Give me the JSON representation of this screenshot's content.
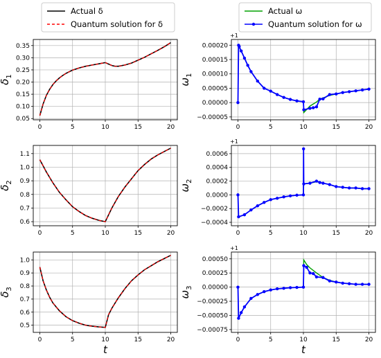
{
  "colors": {
    "actual_delta": "#000000",
    "quantum_delta": "#ff0000",
    "actual_omega": "#00a000",
    "quantum_omega": "#0000ff"
  },
  "legends": {
    "left": {
      "actual": "Actual δ",
      "quantum": "Quantum solution for δ"
    },
    "right": {
      "actual": "Actual ω",
      "quantum": "Quantum solution for ω"
    }
  },
  "chart_data": [
    {
      "type": "line",
      "ylabel": "δ1",
      "xlabel": "",
      "xlim": [
        -1,
        21
      ],
      "ylim": [
        0.045,
        0.375
      ],
      "xticks": [
        0,
        5,
        10,
        15,
        20
      ],
      "yticks": [
        "0.05",
        "0.10",
        "0.15",
        "0.20",
        "0.25",
        "0.30",
        "0.35"
      ],
      "grid": true,
      "series": [
        {
          "name": "Actual δ",
          "x": [
            0,
            0.5,
            1,
            1.5,
            2,
            2.5,
            3,
            3.5,
            4,
            5,
            6,
            7,
            8,
            9,
            10,
            10.5,
            11,
            11.5,
            12,
            13,
            14,
            15,
            16,
            17,
            18,
            19,
            20
          ],
          "y": [
            0.062,
            0.11,
            0.145,
            0.17,
            0.19,
            0.205,
            0.217,
            0.227,
            0.236,
            0.249,
            0.258,
            0.265,
            0.27,
            0.275,
            0.28,
            0.274,
            0.268,
            0.265,
            0.265,
            0.27,
            0.278,
            0.29,
            0.302,
            0.316,
            0.33,
            0.345,
            0.362
          ]
        },
        {
          "name": "Quantum solution for δ",
          "x": [
            0,
            0.5,
            1,
            1.5,
            2,
            2.5,
            3,
            3.5,
            4,
            5,
            6,
            7,
            8,
            9,
            10,
            10.5,
            11,
            11.5,
            12,
            13,
            14,
            15,
            16,
            17,
            18,
            19,
            20
          ],
          "y": [
            0.062,
            0.11,
            0.145,
            0.17,
            0.19,
            0.205,
            0.217,
            0.227,
            0.236,
            0.249,
            0.258,
            0.265,
            0.27,
            0.275,
            0.28,
            0.274,
            0.268,
            0.265,
            0.265,
            0.27,
            0.278,
            0.29,
            0.302,
            0.316,
            0.33,
            0.345,
            0.362
          ]
        }
      ]
    },
    {
      "type": "line",
      "ylabel": "ω1",
      "offset_text": "+1",
      "xlim": [
        -1,
        21
      ],
      "ylim": [
        -6e-05,
        0.00022
      ],
      "xticks": [
        0,
        5,
        10,
        15,
        20
      ],
      "yticks": [
        "−0.00005",
        "0.00000",
        "0.00005",
        "0.00010",
        "0.00015",
        "0.00020"
      ],
      "grid": true,
      "series": [
        {
          "name": "Actual ω",
          "x": [
            0,
            0.2,
            0.5,
            1,
            1.5,
            2,
            3,
            4,
            5,
            6,
            7,
            8,
            9,
            10,
            10.05,
            11,
            12,
            12.5,
            14,
            15,
            16,
            17,
            18,
            19,
            20
          ],
          "y": [
            0.0002,
            0.000195,
            0.00018,
            0.000155,
            0.00013,
            0.000108,
            7.5e-05,
            5e-05,
            4e-05,
            2.8e-05,
            1.8e-05,
            1.1e-05,
            6e-06,
            3e-06,
            -3.5e-05,
            -1.2e-05,
            2e-06,
            1.2e-05,
            2.5e-05,
            3e-05,
            3.5e-05,
            3.8e-05,
            4.1e-05,
            4.4e-05,
            4.7e-05
          ]
        },
        {
          "name": "Quantum solution for ω",
          "x": [
            0,
            0.1,
            0.2,
            0.5,
            1,
            1.5,
            2,
            3,
            4,
            5,
            6,
            7,
            8,
            9,
            10,
            10.05,
            11,
            11.5,
            12,
            12.5,
            13,
            14,
            15,
            16,
            17,
            18,
            19,
            20
          ],
          "y": [
            0,
            0.0002,
            0.000195,
            0.00018,
            0.000155,
            0.00013,
            0.000108,
            7.5e-05,
            5e-05,
            4e-05,
            2.8e-05,
            1.8e-05,
            1.1e-05,
            6e-06,
            3e-06,
            -2.5e-05,
            -2e-05,
            -1.8e-05,
            -1.5e-05,
            1.2e-05,
            1.3e-05,
            2.8e-05,
            3e-05,
            3.5e-05,
            3.8e-05,
            4.1e-05,
            4.4e-05,
            4.7e-05
          ]
        }
      ]
    },
    {
      "type": "line",
      "ylabel": "δ2",
      "xlim": [
        -1,
        21
      ],
      "ylim": [
        0.57,
        1.16
      ],
      "xticks": [
        0,
        5,
        10,
        15,
        20
      ],
      "yticks": [
        "0.6",
        "0.7",
        "0.8",
        "0.9",
        "1.0",
        "1.1"
      ],
      "grid": true,
      "series": [
        {
          "name": "Actual δ",
          "x": [
            0,
            1,
            2,
            3,
            4,
            5,
            6,
            7,
            8,
            9,
            10,
            11,
            12,
            13,
            14,
            15,
            16,
            17,
            18,
            19,
            20
          ],
          "y": [
            1.055,
            0.965,
            0.885,
            0.815,
            0.76,
            0.71,
            0.675,
            0.645,
            0.625,
            0.61,
            0.6,
            0.7,
            0.785,
            0.855,
            0.915,
            0.975,
            1.02,
            1.06,
            1.09,
            1.115,
            1.14
          ]
        },
        {
          "name": "Quantum solution for δ",
          "x": [
            0,
            1,
            2,
            3,
            4,
            5,
            6,
            7,
            8,
            9,
            10,
            11,
            12,
            13,
            14,
            15,
            16,
            17,
            18,
            19,
            20
          ],
          "y": [
            1.055,
            0.965,
            0.885,
            0.815,
            0.76,
            0.71,
            0.675,
            0.645,
            0.625,
            0.61,
            0.6,
            0.7,
            0.785,
            0.855,
            0.915,
            0.975,
            1.02,
            1.06,
            1.09,
            1.115,
            1.14
          ]
        }
      ]
    },
    {
      "type": "line",
      "ylabel": "ω2",
      "offset_text": "+1",
      "xlim": [
        -1,
        21
      ],
      "ylim": [
        -0.00045,
        0.00072
      ],
      "xticks": [
        0,
        5,
        10,
        15,
        20
      ],
      "yticks": [
        "−0.0004",
        "−0.0002",
        "0.0000",
        "0.0002",
        "0.0004",
        "0.0006"
      ],
      "grid": true,
      "series": [
        {
          "name": "Actual ω",
          "x": [
            0.1,
            1,
            2,
            3,
            4,
            5,
            6,
            7,
            8,
            9,
            10,
            10.05,
            11,
            12,
            13,
            14,
            15,
            16,
            17,
            18,
            19,
            20
          ],
          "y": [
            -0.00032,
            -0.00029,
            -0.00022,
            -0.00016,
            -0.00011,
            -7e-05,
            -5e-05,
            -3e-05,
            -1.5e-05,
            -5e-06,
            0,
            0.00016,
            0.00017,
            0.00019,
            0.00017,
            0.00015,
            0.00012,
            0.00011,
            0.0001,
            0.0001,
            9e-05,
            9e-05
          ]
        },
        {
          "name": "Quantum solution for ω",
          "x": [
            0,
            0.1,
            1,
            2,
            3,
            4,
            5,
            6,
            7,
            8,
            9,
            10,
            10.02,
            10.05,
            11,
            12,
            12.5,
            13,
            14,
            15,
            16,
            17,
            18,
            19,
            20
          ],
          "y": [
            0,
            -0.00032,
            -0.00029,
            -0.00022,
            -0.00016,
            -0.00011,
            -7e-05,
            -5e-05,
            -3e-05,
            -1.5e-05,
            -5e-06,
            0,
            0.00067,
            0.00016,
            0.00017,
            0.0002,
            0.00018,
            0.00017,
            0.00015,
            0.00012,
            0.00011,
            0.0001,
            0.0001,
            9e-05,
            9e-05
          ]
        }
      ]
    },
    {
      "type": "line",
      "ylabel": "δ3",
      "xlabel": "t",
      "xlim": [
        -1,
        21
      ],
      "ylim": [
        0.445,
        1.06
      ],
      "xticks": [
        0,
        5,
        10,
        15,
        20
      ],
      "yticks": [
        "0.5",
        "0.6",
        "0.7",
        "0.8",
        "0.9",
        "1.0"
      ],
      "grid": true,
      "series": [
        {
          "name": "Actual δ",
          "x": [
            0,
            0.5,
            1,
            1.5,
            2,
            3,
            4,
            5,
            6,
            7,
            8,
            9,
            10,
            10.5,
            11,
            12,
            13,
            14,
            15,
            16,
            17,
            18,
            19,
            20
          ],
          "y": [
            0.945,
            0.84,
            0.77,
            0.715,
            0.67,
            0.61,
            0.565,
            0.535,
            0.515,
            0.5,
            0.492,
            0.487,
            0.483,
            0.58,
            0.63,
            0.71,
            0.78,
            0.84,
            0.885,
            0.925,
            0.955,
            0.985,
            1.01,
            1.035
          ]
        },
        {
          "name": "Quantum solution for δ",
          "x": [
            0,
            0.5,
            1,
            1.5,
            2,
            3,
            4,
            5,
            6,
            7,
            8,
            9,
            10,
            10.5,
            11,
            12,
            13,
            14,
            15,
            16,
            17,
            18,
            19,
            20
          ],
          "y": [
            0.945,
            0.84,
            0.77,
            0.715,
            0.67,
            0.61,
            0.565,
            0.535,
            0.515,
            0.5,
            0.492,
            0.487,
            0.483,
            0.58,
            0.63,
            0.71,
            0.78,
            0.84,
            0.885,
            0.925,
            0.955,
            0.985,
            1.01,
            1.035
          ]
        }
      ]
    },
    {
      "type": "line",
      "ylabel": "ω3",
      "xlabel": "t",
      "offset_text": "+1",
      "xlim": [
        -1,
        21
      ],
      "ylim": [
        -0.0008,
        0.00062
      ],
      "xticks": [
        0,
        5,
        10,
        15,
        20
      ],
      "yticks": [
        "−0.00075",
        "−0.00050",
        "−0.00025",
        "0.00000",
        "0.00025",
        "0.00050"
      ],
      "grid": true,
      "series": [
        {
          "name": "Actual ω",
          "x": [
            0.1,
            0.5,
            1,
            2,
            3,
            4,
            5,
            6,
            7,
            8,
            9,
            10,
            10.05,
            10.5,
            11,
            12,
            13,
            14,
            15,
            16,
            17,
            18,
            19,
            20
          ],
          "y": [
            -0.00055,
            -0.00045,
            -0.00035,
            -0.0002,
            -0.00013,
            -8e-05,
            -5e-05,
            -3e-05,
            -2e-05,
            -1e-05,
            -5e-06,
            0,
            0.00048,
            0.0004,
            0.00034,
            0.00025,
            0.00017,
            0.00012,
            9e-05,
            7e-05,
            6e-05,
            5e-05,
            5e-05,
            5e-05
          ]
        },
        {
          "name": "Quantum solution for ω",
          "x": [
            0,
            0.1,
            0.5,
            1,
            2,
            3,
            4,
            5,
            6,
            7,
            8,
            9,
            10,
            10.05,
            10.5,
            11,
            11.5,
            12,
            13,
            14,
            15,
            16,
            17,
            18,
            19,
            20
          ],
          "y": [
            0,
            -0.00055,
            -0.00045,
            -0.00035,
            -0.0002,
            -0.00013,
            -8e-05,
            -5e-05,
            -3e-05,
            -2e-05,
            -1e-05,
            -5e-06,
            0,
            0.00038,
            0.00035,
            0.00025,
            0.00024,
            0.00018,
            0.00017,
            0.00011,
            9e-05,
            7e-05,
            6e-05,
            5e-05,
            5e-05,
            5e-05
          ]
        }
      ]
    }
  ]
}
